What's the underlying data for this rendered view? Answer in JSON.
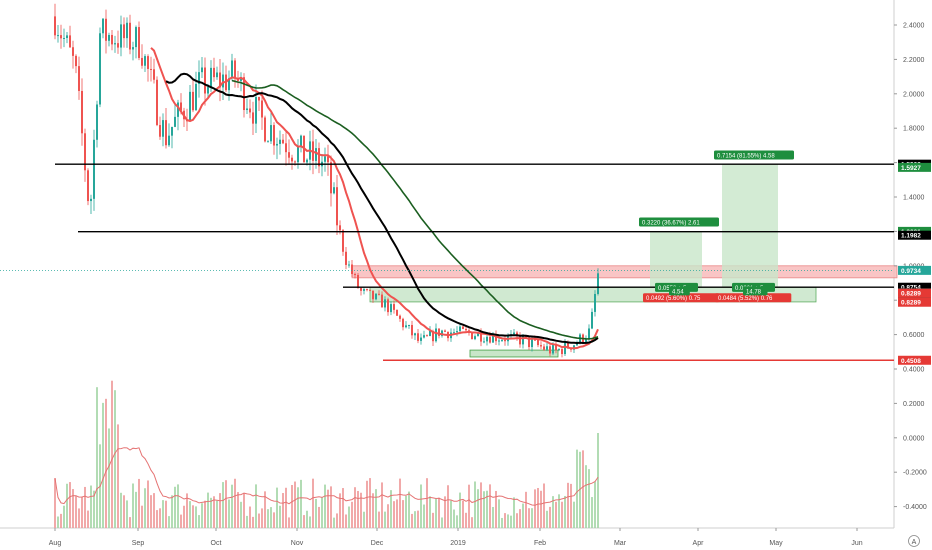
{
  "chart_data": {
    "type": "candlestick",
    "title": "",
    "price_axis_ticks": [
      "2.4000",
      "2.2000",
      "2.0000",
      "1.8000",
      "1.6000",
      "1.4000",
      "1.2000",
      "1.0000",
      "0.8000",
      "0.6000",
      "0.4000",
      "0.2000",
      "0.0000",
      "-0.2000",
      "-0.4000"
    ],
    "price_axis_values": [
      2.4,
      2.2,
      2.0,
      1.8,
      1.6,
      1.4,
      1.2,
      1.0,
      0.8,
      0.6,
      0.4,
      0.2,
      0.0,
      -0.2,
      -0.4
    ],
    "time_axis_labels": [
      "Aug",
      "Sep",
      "Oct",
      "Nov",
      "Dec",
      "2019",
      "Feb",
      "Mar",
      "Apr",
      "May",
      "Jun"
    ],
    "horizontal_levels": [
      {
        "price": 1.5909,
        "label": "1.5909",
        "color": "#000000"
      },
      {
        "price": 1.1982,
        "label": "1.1982",
        "color": "#000000"
      },
      {
        "price": 0.8754,
        "label": "0.8754",
        "color": "#000000"
      },
      {
        "price": 0.4508,
        "label": "0.4508",
        "color": "#e53935"
      }
    ],
    "price_tags": [
      {
        "label": "1.5909",
        "bg": "#000000"
      },
      {
        "label": "1.5927",
        "bg": "#1e8e3e"
      },
      {
        "label": "1.2001",
        "bg": "#1e8e3e"
      },
      {
        "label": "1.1982",
        "bg": "#000000"
      },
      {
        "label": "0.9734",
        "bg": "#26a69a"
      },
      {
        "label": "0.8754",
        "bg": "#000000"
      },
      {
        "label": "0.8781",
        "bg": "#444444"
      },
      {
        "label": "0.8773",
        "bg": "#444444"
      },
      {
        "label": "0.8289",
        "bg": "#e53935"
      },
      {
        "label": "0.8289",
        "bg": "#e53935"
      },
      {
        "label": "0.4508",
        "bg": "#e53935"
      }
    ],
    "annotations": [
      {
        "text": "0.7154 (81.55%) 4.58",
        "bg": "#1e8e3e"
      },
      {
        "text": "0.3220 (36.67%) 2.61",
        "bg": "#1e8e3e"
      },
      {
        "text": "0.0492 (5.60%) 0.75",
        "bg": "#e53935"
      },
      {
        "text": "0.0484 (5.52%) 0.76",
        "bg": "#e53935"
      },
      {
        "text": "0.0553 ÷ 5",
        "bg": "#1e8e3e"
      },
      {
        "text": "4.54",
        "bg": "#1e8e3e"
      },
      {
        "text": "0.0261 ÷ 5",
        "bg": "#1e8e3e"
      },
      {
        "text": "14.78",
        "bg": "#1e8e3e"
      }
    ],
    "colors": {
      "up": "#26a69a",
      "down": "#ef5350",
      "ma_red": "#ef5350",
      "ma_black": "#000000",
      "ma_green": "#1b5e20",
      "volume_ma": "#e57373"
    },
    "grid": false
  }
}
